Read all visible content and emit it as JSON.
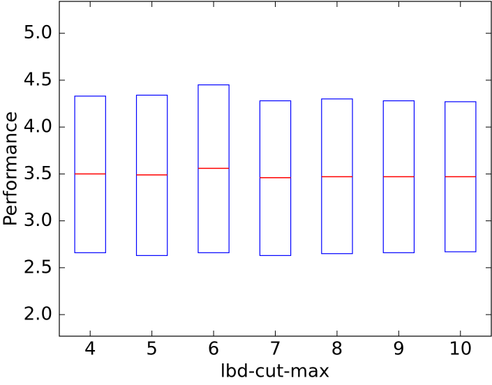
{
  "chart_data": {
    "type": "box",
    "x_label": "lbd-cut-max",
    "y_label": "Performance",
    "categories": [
      "4",
      "5",
      "6",
      "7",
      "8",
      "9",
      "10"
    ],
    "series": [
      {
        "name": "high",
        "values": [
          4.33,
          4.34,
          4.45,
          4.28,
          4.3,
          4.28,
          4.27
        ]
      },
      {
        "name": "median",
        "values": [
          3.5,
          3.49,
          3.56,
          3.46,
          3.47,
          3.47,
          3.47
        ]
      },
      {
        "name": "low",
        "values": [
          2.66,
          2.63,
          2.66,
          2.63,
          2.65,
          2.66,
          2.67
        ]
      }
    ],
    "box_color": "#0000ff",
    "median_color": "#ff0000",
    "ylim": [
      1.77,
      5.34
    ],
    "yticks": [
      {
        "value": 2.0,
        "label": "2.0"
      },
      {
        "value": 2.5,
        "label": "2.5"
      },
      {
        "value": 3.0,
        "label": "3.0"
      },
      {
        "value": 3.5,
        "label": "3.5"
      },
      {
        "value": 4.0,
        "label": "4.0"
      },
      {
        "value": 4.5,
        "label": "4.5"
      },
      {
        "value": 5.0,
        "label": "5.0"
      }
    ]
  }
}
